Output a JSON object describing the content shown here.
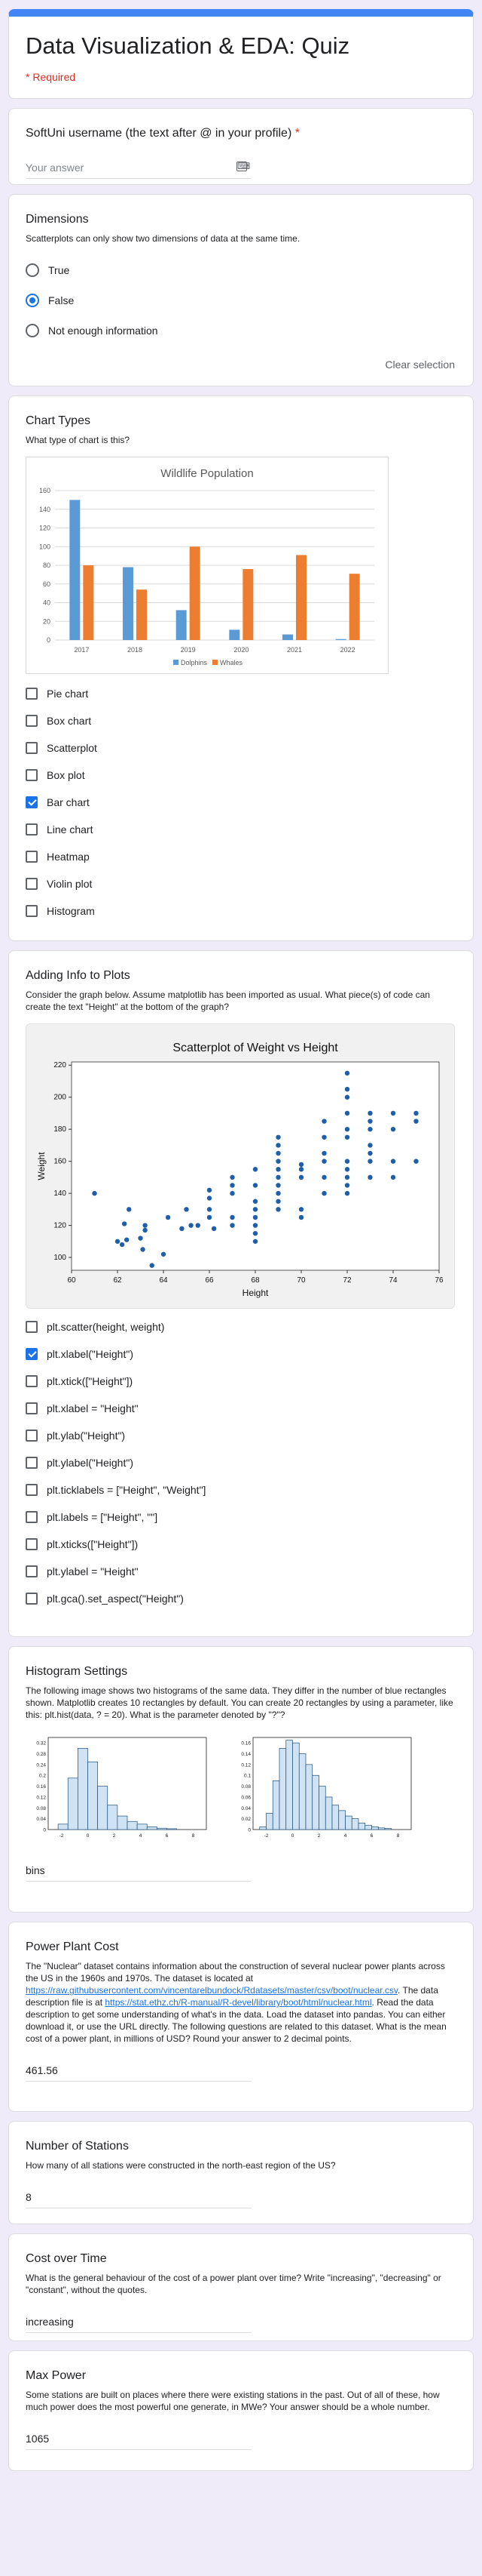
{
  "form": {
    "title": "Data Visualization & EDA: Quiz",
    "required_note": "* Required"
  },
  "q1": {
    "title": "SoftUni username (the text after @ in your profile)",
    "star": "*",
    "placeholder": "Your answer"
  },
  "q2": {
    "title": "Dimensions",
    "desc": "Scatterplots can only show two dimensions of data at the same time.",
    "options": [
      "True",
      "False",
      "Not enough information"
    ],
    "selected": "False",
    "clear": "Clear selection"
  },
  "q3": {
    "title": "Chart Types",
    "desc": "What type of chart is this?",
    "options": [
      "Pie chart",
      "Box chart",
      "Scatterplot",
      "Box plot",
      "Bar chart",
      "Line chart",
      "Heatmap",
      "Violin plot",
      "Histogram"
    ],
    "checked": [
      "Bar chart"
    ]
  },
  "q4": {
    "title": "Adding Info to Plots",
    "desc": "Consider the graph below. Assume matplotlib has been imported as usual. What piece(s) of code can create the text \"Height\" at the bottom of the graph?",
    "options": [
      "plt.scatter(height, weight)",
      "plt.xlabel(\"Height\")",
      "plt.xtick([\"Height\"])",
      "plt.xlabel = \"Height\"",
      "plt.ylab(\"Height\")",
      "plt.ylabel(\"Height\")",
      "plt.ticklabels = [\"Height\", \"Weight\"]",
      "plt.labels = [\"Height\", \"\"]",
      "plt.xticks([\"Height\"])",
      "plt.ylabel = \"Height\"",
      "plt.gca().set_aspect(\"Height\")"
    ],
    "checked": [
      "plt.xlabel(\"Height\")"
    ]
  },
  "q5": {
    "title": "Histogram Settings",
    "desc": "The following image shows two histograms of the same data. They differ in the number of blue rectangles shown. Matplotlib creates 10 rectangles by default. You can create 20 rectangles by using a parameter, like this: plt.hist(data, ? = 20). What is the parameter denoted by \"?\"?",
    "answer": "bins"
  },
  "q6": {
    "title": "Power Plant Cost",
    "desc_1": "The \"Nuclear\" dataset contains information about the construction of several nuclear power plants across the US in the 1960s and 1970s. The dataset is located at ",
    "link_1": "https://raw.githubusercontent.com/vincentarelbundock/Rdatasets/master/csv/boot/nuclear.csv",
    "desc_2": ". The data description file is at ",
    "link_2": "https://stat.ethz.ch/R-manual/R-devel/library/boot/html/nuclear.html",
    "desc_3": ". Read the data description to get some understanding of what's in the data. Load the dataset into pandas. You can either download it, or use the URL directly. The following questions are related to this dataset. What is the mean cost of a power plant, in millions of USD? Round your answer to 2 decimal points.",
    "answer": "461.56"
  },
  "q7": {
    "title": "Number of Stations",
    "desc": "How many of all stations were constructed in the north-east region of the US?",
    "answer": "8"
  },
  "q8": {
    "title": "Cost over Time",
    "desc": "What is the general behaviour of the cost of a power plant over time? Write \"increasing\", \"decreasing\" or \"constant\", without the quotes.",
    "answer": "increasing"
  },
  "q9": {
    "title": "Max Power",
    "desc": "Some stations are built on places where there were existing stations in the past. Out of all of these, how much power does the most powerful one generate, in MWe? Your answer should be a whole number.",
    "answer": "1065"
  },
  "icons": {
    "keyboard": "keyboard-icon"
  },
  "colors": {
    "accent": "#1a73e8",
    "header_bar": "#4285f4",
    "background": "#f0ebf8",
    "required": "#d93025"
  },
  "chart_data": [
    {
      "type": "bar",
      "title": "Wildlife Population",
      "categories": [
        "2017",
        "2018",
        "2019",
        "2020",
        "2021",
        "2022"
      ],
      "series": [
        {
          "name": "Dolphins",
          "values": [
            150,
            78,
            32,
            11,
            6,
            1
          ],
          "color": "#5b9bd5"
        },
        {
          "name": "Whales",
          "values": [
            80,
            54,
            100,
            76,
            91,
            71
          ],
          "color": "#ed7d31"
        }
      ],
      "ylim": [
        0,
        160
      ],
      "yticks": [
        0,
        20,
        40,
        60,
        80,
        100,
        120,
        140,
        160
      ],
      "legend": "bottom",
      "grid": true
    },
    {
      "type": "scatter",
      "title": "Scatterplot of Weight vs Height",
      "xlabel": "Height",
      "ylabel": "Weight",
      "xlim": [
        60,
        76
      ],
      "ylim": [
        92,
        222
      ],
      "xticks": [
        60,
        62,
        64,
        66,
        68,
        70,
        72,
        74,
        76
      ],
      "yticks": [
        100,
        120,
        140,
        160,
        180,
        200,
        220
      ],
      "grid": false,
      "points": [
        [
          61,
          140
        ],
        [
          62,
          110
        ],
        [
          62.2,
          108
        ],
        [
          62.3,
          121
        ],
        [
          62.5,
          130
        ],
        [
          62.4,
          111
        ],
        [
          63,
          112
        ],
        [
          63.1,
          105
        ],
        [
          63.2,
          117
        ],
        [
          63.5,
          95
        ],
        [
          63.2,
          120
        ],
        [
          64,
          102
        ],
        [
          64.2,
          125
        ],
        [
          64.8,
          118
        ],
        [
          65,
          130
        ],
        [
          65.2,
          120
        ],
        [
          65.5,
          120
        ],
        [
          66,
          125
        ],
        [
          66,
          130
        ],
        [
          66,
          137
        ],
        [
          66,
          142
        ],
        [
          66.2,
          118
        ],
        [
          67,
          120
        ],
        [
          67,
          125
        ],
        [
          67,
          140
        ],
        [
          67,
          145
        ],
        [
          67,
          150
        ],
        [
          68,
          110
        ],
        [
          68,
          115
        ],
        [
          68,
          120
        ],
        [
          68,
          125
        ],
        [
          68,
          130
        ],
        [
          68,
          135
        ],
        [
          68,
          145
        ],
        [
          68,
          155
        ],
        [
          69,
          130
        ],
        [
          69,
          135
        ],
        [
          69,
          140
        ],
        [
          69,
          145
        ],
        [
          69,
          150
        ],
        [
          69,
          155
        ],
        [
          69,
          160
        ],
        [
          69,
          165
        ],
        [
          69,
          170
        ],
        [
          69,
          175
        ],
        [
          70,
          125
        ],
        [
          70,
          130
        ],
        [
          70,
          150
        ],
        [
          70,
          155
        ],
        [
          70,
          158
        ],
        [
          71,
          140
        ],
        [
          71,
          150
        ],
        [
          71,
          160
        ],
        [
          71,
          165
        ],
        [
          71,
          175
        ],
        [
          71,
          185
        ],
        [
          72,
          140
        ],
        [
          72,
          145
        ],
        [
          72,
          150
        ],
        [
          72,
          155
        ],
        [
          72,
          160
        ],
        [
          72,
          175
        ],
        [
          72,
          180
        ],
        [
          72,
          190
        ],
        [
          72,
          200
        ],
        [
          72,
          205
        ],
        [
          72,
          215
        ],
        [
          73,
          150
        ],
        [
          73,
          160
        ],
        [
          73,
          165
        ],
        [
          73,
          170
        ],
        [
          73,
          180
        ],
        [
          73,
          185
        ],
        [
          73,
          190
        ],
        [
          74,
          150
        ],
        [
          74,
          160
        ],
        [
          74,
          180
        ],
        [
          74,
          190
        ],
        [
          75,
          160
        ],
        [
          75,
          185
        ],
        [
          75,
          190
        ]
      ]
    },
    {
      "type": "bar",
      "title": "",
      "x": [
        -2.25,
        -1.5,
        -0.75,
        0,
        0.75,
        1.5,
        2.25,
        3.0,
        3.75,
        4.5,
        5.25,
        6.0
      ],
      "values": [
        0.02,
        0.19,
        0.3,
        0.25,
        0.16,
        0.09,
        0.05,
        0.03,
        0.02,
        0.01,
        0.005,
        0.003
      ],
      "xlim": [
        -3,
        9
      ],
      "ylim": [
        0,
        0.34
      ],
      "yticks": [
        0,
        0.04,
        0.08,
        0.12,
        0.16,
        0.2,
        0.24,
        0.28,
        0.32
      ],
      "xticks": [
        -2,
        0,
        2,
        4,
        6,
        8
      ]
    },
    {
      "type": "bar",
      "title": "",
      "x": [
        -2.5,
        -2.0,
        -1.5,
        -1.0,
        -0.5,
        0,
        0.5,
        1.0,
        1.5,
        2.0,
        2.5,
        3.0,
        3.5,
        4.0,
        4.5,
        5.0,
        5.5,
        6.0,
        6.5,
        7.0
      ],
      "values": [
        0.005,
        0.03,
        0.09,
        0.15,
        0.165,
        0.16,
        0.14,
        0.12,
        0.1,
        0.08,
        0.06,
        0.045,
        0.035,
        0.025,
        0.02,
        0.012,
        0.008,
        0.005,
        0.003,
        0.002
      ],
      "xlim": [
        -3,
        9
      ],
      "ylim": [
        0,
        0.17
      ],
      "yticks": [
        0,
        0.02,
        0.04,
        0.06,
        0.08,
        0.1,
        0.12,
        0.14,
        0.16
      ],
      "xticks": [
        -2,
        0,
        2,
        4,
        6,
        8
      ]
    }
  ]
}
